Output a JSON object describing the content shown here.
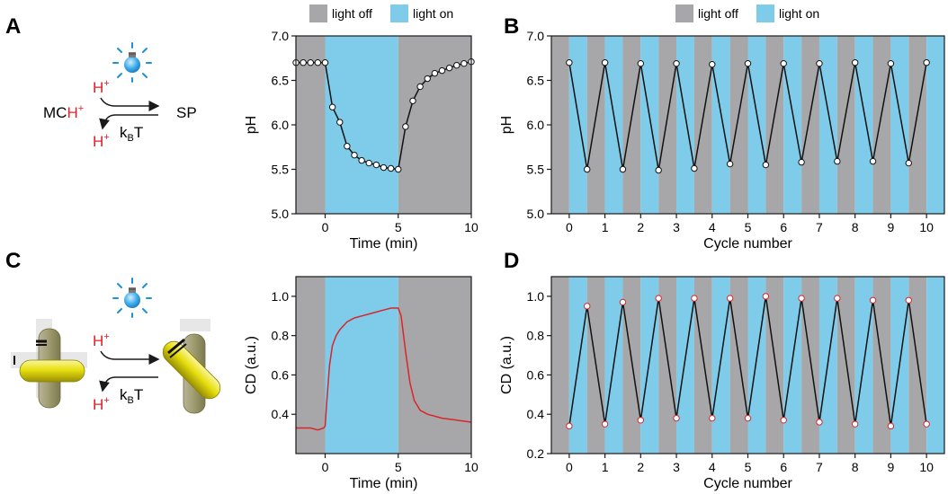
{
  "panels": {
    "A": "A",
    "B": "B",
    "C": "C",
    "D": "D"
  },
  "legend": {
    "off": "light off",
    "on": "light on"
  },
  "colors": {
    "off": "#a7a7a9",
    "on": "#7ecbea",
    "line_ph": "#111111",
    "line_cd": "#d9262b",
    "marker_cd": "#d9262b"
  },
  "scheme_a": {
    "left": "MC",
    "left_h": "H",
    "left_plus": "+",
    "right": "SP",
    "top_h": "H",
    "top_plus": "+",
    "bottom_h": "H",
    "bottom_plus": "+",
    "kt_k": "k",
    "kt_b": "B",
    "kt_t": "T",
    "icon": "light-bulb-icon"
  },
  "scheme_c": {
    "top_h": "H",
    "top_plus": "+",
    "bottom_h": "H",
    "bottom_plus": "+",
    "kt_k": "k",
    "kt_b": "B",
    "kt_t": "T",
    "icon": "light-bulb-icon"
  },
  "chart_data": [
    {
      "id": "A",
      "type": "scatter",
      "xlabel": "Time (min)",
      "ylabel": "pH",
      "xlim": [
        -2,
        10
      ],
      "ylim": [
        5.0,
        7.0
      ],
      "xticks": [
        0,
        5,
        10
      ],
      "yticks": [
        5.0,
        5.5,
        6.0,
        6.5,
        7.0
      ],
      "ytick_labels": [
        "5.0",
        "5.5",
        "6.0",
        "6.5",
        "7.0"
      ],
      "shading": [
        {
          "from": -2,
          "to": 0,
          "state": "off"
        },
        {
          "from": 0,
          "to": 5,
          "state": "on"
        },
        {
          "from": 5,
          "to": 10,
          "state": "off"
        }
      ],
      "x": [
        -2,
        -1.5,
        -1.0,
        -0.5,
        0,
        0.5,
        1.0,
        1.5,
        2.0,
        2.5,
        3.0,
        3.5,
        4.0,
        4.5,
        5.0,
        5.5,
        6.0,
        6.5,
        7.0,
        7.5,
        8.0,
        8.5,
        9.0,
        9.5,
        10.0
      ],
      "y": [
        6.7,
        6.7,
        6.7,
        6.7,
        6.7,
        6.2,
        6.03,
        5.76,
        5.66,
        5.6,
        5.57,
        5.55,
        5.52,
        5.51,
        5.5,
        5.98,
        6.27,
        6.43,
        6.52,
        6.58,
        6.61,
        6.64,
        6.67,
        6.69,
        6.71
      ]
    },
    {
      "id": "B",
      "type": "line",
      "xlabel": "Cycle number",
      "ylabel": "pH",
      "xlim": [
        -0.5,
        10.5
      ],
      "ylim": [
        5.0,
        7.0
      ],
      "xticks": [
        0,
        1,
        2,
        3,
        4,
        5,
        6,
        7,
        8,
        9,
        10
      ],
      "yticks": [
        5.0,
        5.5,
        6.0,
        6.5,
        7.0
      ],
      "ytick_labels": [
        "5.0",
        "5.5",
        "6.0",
        "6.5",
        "7.0"
      ],
      "x": [
        0,
        0.5,
        1,
        1.5,
        2,
        2.5,
        3,
        3.5,
        4,
        4.5,
        5,
        5.5,
        6,
        6.5,
        7,
        7.5,
        8,
        8.5,
        9,
        9.5,
        10
      ],
      "y": [
        6.7,
        5.5,
        6.7,
        5.5,
        6.69,
        5.49,
        6.69,
        5.51,
        6.68,
        5.56,
        6.69,
        5.55,
        6.69,
        5.58,
        6.69,
        5.59,
        6.7,
        5.59,
        6.69,
        5.57,
        6.7
      ]
    },
    {
      "id": "C",
      "type": "line",
      "xlabel": "Time (min)",
      "ylabel": "CD (a.u.)",
      "xlim": [
        -2,
        10
      ],
      "ylim": [
        0.2,
        1.1
      ],
      "xticks": [
        0,
        5,
        10
      ],
      "yticks": [
        0.4,
        0.6,
        0.8,
        1.0
      ],
      "ytick_labels": [
        "0.4",
        "0.6",
        "0.8",
        "1.0"
      ],
      "shading": [
        {
          "from": -2,
          "to": 0,
          "state": "off"
        },
        {
          "from": 0,
          "to": 5,
          "state": "on"
        },
        {
          "from": 5,
          "to": 10,
          "state": "off"
        }
      ],
      "x": [
        -2,
        -1.0,
        -0.5,
        -0.1,
        0,
        0.1,
        0.3,
        0.5,
        0.75,
        1.0,
        1.5,
        2.0,
        2.5,
        3.0,
        3.5,
        4.0,
        4.5,
        5.0,
        5.2,
        5.5,
        5.8,
        6.1,
        6.5,
        7.0,
        7.5,
        8.0,
        9.0,
        10.0
      ],
      "y": [
        0.33,
        0.33,
        0.32,
        0.33,
        0.34,
        0.45,
        0.65,
        0.75,
        0.8,
        0.83,
        0.87,
        0.89,
        0.9,
        0.91,
        0.92,
        0.93,
        0.94,
        0.94,
        0.9,
        0.72,
        0.56,
        0.47,
        0.42,
        0.4,
        0.39,
        0.38,
        0.37,
        0.36
      ]
    },
    {
      "id": "D",
      "type": "line",
      "xlabel": "Cycle number",
      "ylabel": "CD (a.u.)",
      "xlim": [
        -0.5,
        10.5
      ],
      "ylim": [
        0.2,
        1.1
      ],
      "xticks": [
        0,
        1,
        2,
        3,
        4,
        5,
        6,
        7,
        8,
        9,
        10
      ],
      "yticks": [
        0.2,
        0.4,
        0.6,
        0.8,
        1.0
      ],
      "ytick_labels": [
        "0.2",
        "0.4",
        "0.6",
        "0.8",
        "1.0"
      ],
      "x": [
        0,
        0.5,
        1,
        1.5,
        2,
        2.5,
        3,
        3.5,
        4,
        4.5,
        5,
        5.5,
        6,
        6.5,
        7,
        7.5,
        8,
        8.5,
        9,
        9.5,
        10
      ],
      "y": [
        0.34,
        0.95,
        0.35,
        0.97,
        0.37,
        0.99,
        0.38,
        0.99,
        0.38,
        0.99,
        0.38,
        1.0,
        0.37,
        0.99,
        0.36,
        0.99,
        0.35,
        0.98,
        0.34,
        0.98,
        0.35
      ]
    }
  ]
}
